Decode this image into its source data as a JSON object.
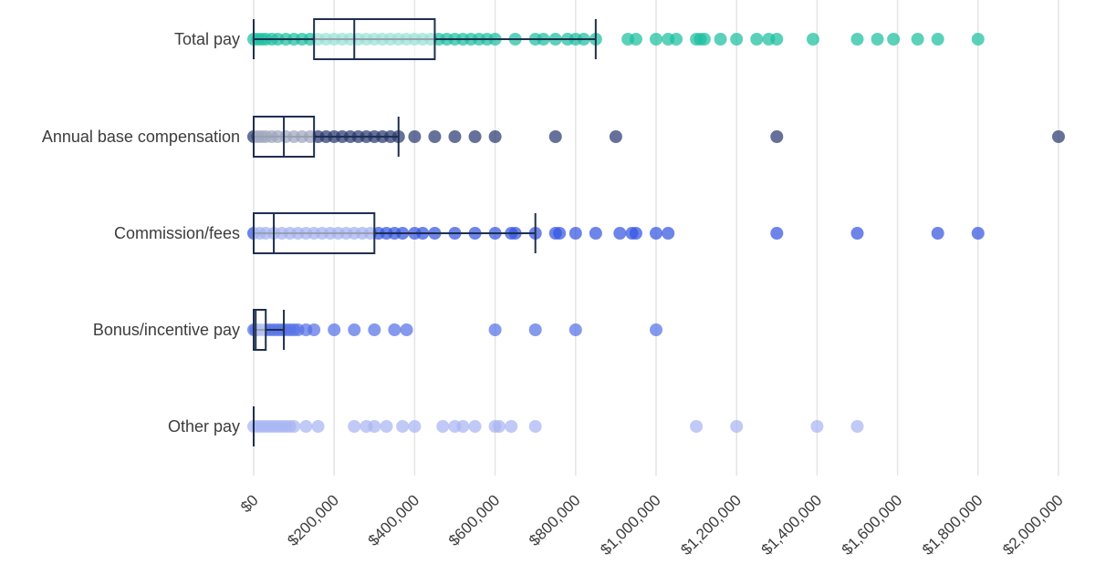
{
  "chart_data": {
    "type": "boxplot-strip",
    "orientation": "horizontal",
    "title": "",
    "xlabel": "",
    "ylabel": "",
    "xlim": [
      0,
      2000000
    ],
    "x_ticks": [
      0,
      200000,
      400000,
      600000,
      800000,
      1000000,
      1200000,
      1400000,
      1600000,
      1800000,
      2000000
    ],
    "x_tick_labels": [
      "$0",
      "$200,000",
      "$400,000",
      "$600,000",
      "$800,000",
      "$1,000,000",
      "$1,200,000",
      "$1,400,000",
      "$1,600,000",
      "$1,800,000",
      "$2,000,000"
    ],
    "grid": "vertical",
    "legend": "none",
    "series": [
      {
        "category": "Total pay",
        "color": "#1dbf9f",
        "box": {
          "whisker_low": 0,
          "q1": 150000,
          "median": 250000,
          "q3": 450000,
          "whisker_high": 850000
        },
        "points": [
          0,
          10000,
          20000,
          30000,
          45000,
          60000,
          80000,
          100000,
          120000,
          140000,
          160000,
          180000,
          200000,
          220000,
          240000,
          260000,
          280000,
          300000,
          320000,
          340000,
          360000,
          380000,
          400000,
          420000,
          440000,
          460000,
          480000,
          500000,
          520000,
          540000,
          560000,
          580000,
          600000,
          650000,
          700000,
          720000,
          750000,
          780000,
          800000,
          820000,
          850000,
          930000,
          950000,
          1000000,
          1030000,
          1050000,
          1100000,
          1110000,
          1120000,
          1160000,
          1200000,
          1250000,
          1280000,
          1300000,
          1390000,
          1500000,
          1550000,
          1590000,
          1650000,
          1700000,
          1800000
        ]
      },
      {
        "category": "Annual base compensation",
        "color": "#2a3a70",
        "box": {
          "whisker_low": 0,
          "q1": 0,
          "median": 75000,
          "q3": 150000,
          "whisker_high": 360000
        },
        "points": [
          0,
          10000,
          20000,
          30000,
          45000,
          60000,
          80000,
          100000,
          120000,
          140000,
          160000,
          180000,
          200000,
          220000,
          240000,
          260000,
          280000,
          300000,
          320000,
          340000,
          360000,
          400000,
          450000,
          500000,
          550000,
          600000,
          750000,
          900000,
          1300000,
          2000000
        ]
      },
      {
        "category": "Commission/fees",
        "color": "#3554e0",
        "box": {
          "whisker_low": 0,
          "q1": 0,
          "median": 50000,
          "q3": 300000,
          "whisker_high": 700000
        },
        "points": [
          0,
          15000,
          30000,
          50000,
          70000,
          90000,
          110000,
          130000,
          150000,
          170000,
          190000,
          210000,
          230000,
          250000,
          270000,
          290000,
          310000,
          330000,
          350000,
          370000,
          400000,
          420000,
          450000,
          500000,
          550000,
          600000,
          640000,
          650000,
          700000,
          750000,
          760000,
          800000,
          850000,
          910000,
          940000,
          950000,
          1000000,
          1030000,
          1300000,
          1500000,
          1700000,
          1800000
        ]
      },
      {
        "category": "Bonus/incentive pay",
        "color": "#5672e6",
        "box": {
          "whisker_low": 0,
          "q1": 0,
          "median": 5000,
          "q3": 30000,
          "whisker_high": 75000
        },
        "points": [
          0,
          5000,
          10000,
          20000,
          30000,
          40000,
          50000,
          60000,
          70000,
          80000,
          90000,
          100000,
          110000,
          130000,
          150000,
          200000,
          250000,
          300000,
          350000,
          380000,
          600000,
          700000,
          800000,
          1000000
        ]
      },
      {
        "category": "Other pay",
        "color": "#a9b6f3",
        "box": {
          "whisker_low": 0,
          "q1": 0,
          "median": 0,
          "q3": 0,
          "whisker_high": 0
        },
        "points": [
          0,
          10000,
          20000,
          30000,
          40000,
          50000,
          60000,
          70000,
          80000,
          90000,
          100000,
          130000,
          160000,
          250000,
          280000,
          300000,
          330000,
          370000,
          400000,
          470000,
          500000,
          520000,
          550000,
          600000,
          610000,
          640000,
          700000,
          1100000,
          1200000,
          1400000,
          1500000
        ]
      }
    ]
  }
}
